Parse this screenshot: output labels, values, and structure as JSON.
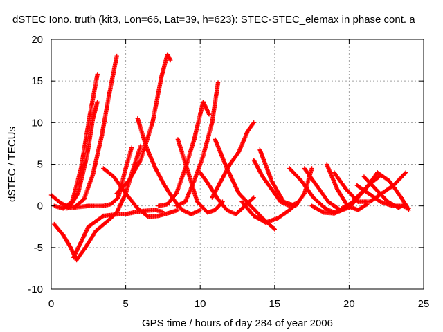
{
  "chart_data": {
    "type": "scatter",
    "title": "dSTEC Iono. truth (kit3, Lon=66, Lat=39, h=623): STEC-STEC_elemax in phase cont. a",
    "xlabel": "GPS time / hours of day 284 of year 2006",
    "ylabel": "dSTEC  / TECUs",
    "xlim": [
      0,
      25
    ],
    "ylim": [
      -10,
      20
    ],
    "xticks": [
      "0",
      "5",
      "10",
      "15",
      "20",
      "25"
    ],
    "yticks": [
      "-10",
      "-5",
      "0",
      "5",
      "10",
      "15",
      "20"
    ],
    "grid": true,
    "marker": "+",
    "color": "#ff0000",
    "series": [
      {
        "x": [
          0,
          0.6,
          1.2,
          1.8,
          2.4,
          2.8,
          3.1
        ],
        "y": [
          1.3,
          0.4,
          -0.2,
          1.5,
          6.0,
          10.5,
          12.5
        ]
      },
      {
        "x": [
          0.2,
          0.8,
          1.4,
          2.0,
          2.6,
          3.1
        ],
        "y": [
          0.0,
          -0.3,
          0.5,
          4.5,
          11.0,
          15.8
        ]
      },
      {
        "x": [
          1.0,
          1.6,
          2.2,
          2.8,
          3.4,
          3.9,
          4.4
        ],
        "y": [
          -0.3,
          -0.1,
          0.8,
          3.8,
          8.5,
          13.5,
          18.0
        ]
      },
      {
        "x": [
          0.2,
          0.8,
          1.3,
          1.7,
          2.3,
          3.0,
          3.8,
          4.4,
          5.0,
          5.6,
          6.0
        ],
        "y": [
          -2.2,
          -3.5,
          -5.0,
          -6.5,
          -5.0,
          -3.0,
          -1.8,
          -0.8,
          1.5,
          5.0,
          7.2
        ]
      },
      {
        "x": [
          1.5,
          2.5,
          3.5,
          4.5,
          5.0,
          5.5,
          6.2,
          7.0,
          7.5
        ],
        "y": [
          -6.2,
          -2.5,
          -1.2,
          -1.0,
          -1.0,
          -0.8,
          -0.6,
          -0.5,
          -0.7
        ]
      },
      {
        "x": [
          1.5,
          2.5,
          3.5,
          4.0,
          4.5,
          5.0,
          5.4
        ],
        "y": [
          -0.2,
          0.0,
          0.0,
          0.2,
          1.0,
          4.5,
          7.0
        ]
      },
      {
        "x": [
          3.5,
          4.2,
          5.0,
          5.8,
          6.5,
          7.2,
          8.0,
          8.5
        ],
        "y": [
          4.5,
          3.5,
          1.5,
          -0.3,
          -1.3,
          -1.2,
          -0.8,
          -0.5
        ]
      },
      {
        "x": [
          4.4,
          5.2,
          6.0,
          6.8,
          7.4,
          7.8,
          8.0
        ],
        "y": [
          1.5,
          3.0,
          5.5,
          10.0,
          15.5,
          18.2,
          17.5
        ]
      },
      {
        "x": [
          5.8,
          6.4,
          7.0,
          7.6,
          8.2,
          8.8,
          9.4,
          10.0
        ],
        "y": [
          10.5,
          7.0,
          4.5,
          2.5,
          0.8,
          -0.5,
          -1.0,
          -0.5
        ]
      },
      {
        "x": [
          7.2,
          7.8,
          8.4,
          9.0,
          9.6,
          10.2,
          10.6
        ],
        "y": [
          0.0,
          0.2,
          1.5,
          4.5,
          8.0,
          12.5,
          11.0
        ]
      },
      {
        "x": [
          8.4,
          9.0,
          9.6,
          10.2,
          10.8,
          11.2
        ],
        "y": [
          0.0,
          0.5,
          3.0,
          6.0,
          10.0,
          14.8
        ]
      },
      {
        "x": [
          8.5,
          9.2,
          9.8,
          10.5,
          11.0,
          11.5
        ],
        "y": [
          8.0,
          4.0,
          0.5,
          -0.8,
          -0.5,
          0.5
        ]
      },
      {
        "x": [
          10.0,
          10.6,
          11.2,
          11.8,
          12.4,
          13.0,
          13.6
        ],
        "y": [
          4.0,
          2.5,
          0.8,
          -0.5,
          -1.0,
          0.0,
          1.0
        ]
      },
      {
        "x": [
          10.8,
          11.4,
          12.0,
          12.6,
          13.2,
          13.6
        ],
        "y": [
          1.0,
          3.0,
          5.0,
          6.5,
          9.0,
          10.0
        ]
      },
      {
        "x": [
          11.0,
          11.8,
          12.6,
          13.4,
          14.2,
          15.0
        ],
        "y": [
          8.0,
          4.5,
          1.5,
          0.0,
          -1.5,
          -2.8
        ]
      },
      {
        "x": [
          12.8,
          13.6,
          14.4,
          15.2,
          16.0,
          16.6
        ],
        "y": [
          0.5,
          -1.2,
          -2.0,
          -1.5,
          -0.5,
          0.5
        ]
      },
      {
        "x": [
          13.6,
          14.2,
          14.8,
          15.4,
          16.0,
          16.6
        ],
        "y": [
          5.5,
          3.5,
          2.0,
          0.5,
          0.0,
          0.4
        ]
      },
      {
        "x": [
          14.0,
          14.8,
          15.6,
          16.4,
          17.0,
          17.5
        ],
        "y": [
          6.8,
          3.0,
          0.5,
          0.0,
          1.5,
          4.5
        ]
      },
      {
        "x": [
          16.0,
          16.8,
          17.6,
          18.4,
          19.0,
          19.5
        ],
        "y": [
          4.5,
          3.0,
          1.0,
          -0.3,
          -0.8,
          -0.5
        ]
      },
      {
        "x": [
          17.0,
          17.8,
          18.6,
          19.4,
          20.0,
          20.6
        ],
        "y": [
          4.5,
          2.5,
          0.5,
          -0.5,
          -0.2,
          1.0
        ]
      },
      {
        "x": [
          18.5,
          19.2,
          19.9,
          20.6,
          21.2
        ],
        "y": [
          5.0,
          2.0,
          0.0,
          -0.5,
          0.2
        ]
      },
      {
        "x": [
          17.5,
          18.3,
          19.0,
          19.8,
          20.5,
          21.3,
          22.0
        ],
        "y": [
          0.0,
          -0.8,
          -0.9,
          -0.3,
          1.0,
          2.5,
          3.5
        ]
      },
      {
        "x": [
          19.0,
          19.8,
          20.6,
          21.4,
          22.2,
          23.0,
          23.8
        ],
        "y": [
          4.0,
          2.0,
          0.5,
          0.5,
          1.5,
          2.5,
          4.0
        ]
      },
      {
        "x": [
          19.5,
          20.3,
          21.1,
          21.9,
          22.7,
          23.5,
          24.0
        ],
        "y": [
          -0.3,
          0.5,
          2.0,
          4.0,
          3.0,
          1.0,
          -0.5
        ]
      },
      {
        "x": [
          20.5,
          21.3,
          22.1,
          22.9,
          23.6,
          24.0
        ],
        "y": [
          2.5,
          1.5,
          0.5,
          0.0,
          0.0,
          -0.3
        ]
      },
      {
        "x": [
          21.0,
          21.8,
          22.6,
          23.3,
          23.8
        ],
        "y": [
          3.5,
          2.0,
          0.5,
          -0.2,
          0.2
        ]
      }
    ]
  }
}
